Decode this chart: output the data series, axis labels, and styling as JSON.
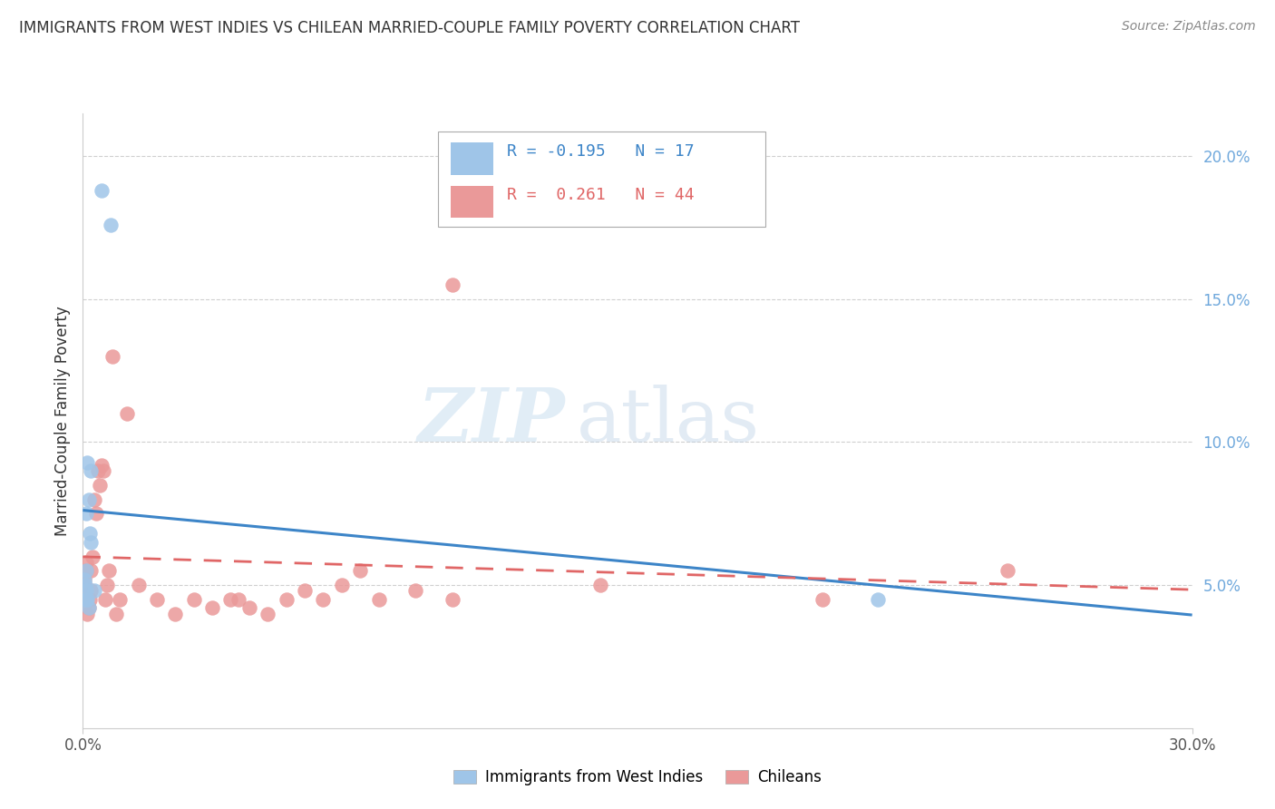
{
  "title": "IMMIGRANTS FROM WEST INDIES VS CHILEAN MARRIED-COUPLE FAMILY POVERTY CORRELATION CHART",
  "source": "Source: ZipAtlas.com",
  "ylabel": "Married-Couple Family Poverty",
  "R1": "-0.195",
  "N1": "17",
  "R2": "0.261",
  "N2": "44",
  "blue_scatter_color": "#9fc5e8",
  "pink_scatter_color": "#ea9999",
  "blue_line_color": "#3d85c8",
  "pink_line_color": "#e06666",
  "legend_label1": "Immigrants from West Indies",
  "legend_label2": "Chileans",
  "xlim": [
    0.0,
    30.0
  ],
  "ylim": [
    0.0,
    21.5
  ],
  "ytick_values": [
    5.0,
    10.0,
    15.0,
    20.0
  ],
  "ytick_labels": [
    "5.0%",
    "10.0%",
    "15.0%",
    "20.0%"
  ],
  "west_indies_x": [
    0.5,
    0.75,
    0.12,
    0.22,
    0.15,
    0.08,
    0.18,
    0.22,
    0.1,
    0.05,
    0.06,
    0.08,
    0.1,
    0.12,
    0.15,
    0.3,
    21.5
  ],
  "west_indies_y": [
    18.8,
    17.6,
    9.3,
    9.0,
    8.0,
    7.5,
    6.8,
    6.5,
    5.5,
    5.2,
    5.0,
    4.8,
    4.5,
    4.5,
    4.2,
    4.8,
    4.5
  ],
  "chileans_x": [
    0.05,
    0.05,
    0.08,
    0.1,
    0.12,
    0.15,
    0.18,
    0.2,
    0.22,
    0.25,
    0.3,
    0.35,
    0.4,
    0.45,
    0.5,
    0.55,
    0.6,
    0.65,
    0.7,
    0.8,
    0.9,
    1.0,
    1.2,
    1.5,
    2.0,
    2.5,
    3.0,
    3.5,
    4.0,
    4.2,
    4.5,
    5.0,
    5.5,
    6.0,
    6.5,
    7.0,
    7.5,
    8.0,
    9.0,
    10.0,
    10.0,
    14.0,
    20.0,
    25.0
  ],
  "chileans_y": [
    5.0,
    5.2,
    5.5,
    5.8,
    4.0,
    4.2,
    4.5,
    4.8,
    5.5,
    6.0,
    8.0,
    7.5,
    9.0,
    8.5,
    9.2,
    9.0,
    4.5,
    5.0,
    5.5,
    13.0,
    4.0,
    4.5,
    11.0,
    5.0,
    4.5,
    4.0,
    4.5,
    4.2,
    4.5,
    4.5,
    4.2,
    4.0,
    4.5,
    4.8,
    4.5,
    5.0,
    5.5,
    4.5,
    4.8,
    4.5,
    15.5,
    5.0,
    4.5,
    5.5
  ]
}
